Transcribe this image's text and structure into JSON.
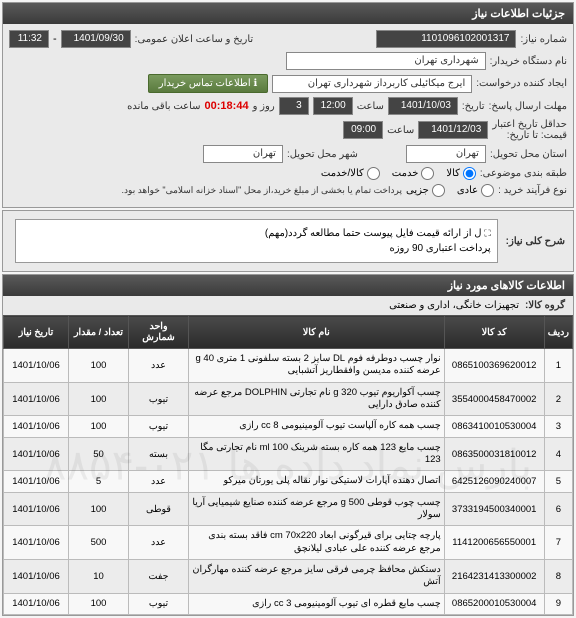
{
  "header": {
    "title": "جزئیات اطلاعات نیاز"
  },
  "info": {
    "need_no_label": "شماره نیاز:",
    "need_no": "1101096102001317",
    "announce_label": "تاریخ و ساعت اعلان عمومی:",
    "announce_date": "1401/09/30",
    "announce_time": "11:32",
    "buyer_label": "نام دستگاه خریدار:",
    "buyer": "شهرداری تهران",
    "creator_label": "ایجاد کننده درخواست:",
    "creator": "ایرج میکائیلی کاربرداز شهرداری تهران",
    "contact_btn": "اطلاعات تماس خریدار",
    "deadline_label": "مهلت ارسال پاسخ:",
    "deadline_date_lbl": "تاریخ:",
    "deadline_date": "1401/10/03",
    "deadline_time_lbl": "ساعت",
    "deadline_time": "12:00",
    "days": "3",
    "days_lbl": "روز و",
    "countdown": "00:18:44",
    "remain_lbl": "ساعت باقی مانده",
    "validity_label": "حداقل تاریخ اعتبار",
    "validity_sub": "قیمت: تا تاریخ:",
    "validity_date": "1401/12/03",
    "validity_time": "09:00",
    "delivery_place_label": "استان محل تحویل:",
    "delivery_province": "تهران",
    "delivery_city_label": "شهر محل تحویل:",
    "delivery_city": "تهران",
    "category_label": "طبقه بندی موضوعی:",
    "cat_goods": "کالا",
    "cat_service": "خدمت",
    "cat_both": "کالا/خدمت",
    "purchase_type_label": "نوع فرآیند خرید :",
    "purchase_type_opt1": "عادی",
    "purchase_type_opt2": "جزیی",
    "purchase_note": "پرداخت تمام یا بخشی از مبلغ خرید،از محل \"اسناد خزانه اسلامی\" خواهد بود."
  },
  "desc": {
    "title": "شرح کلی نیاز:",
    "expand": "⛶",
    "line1": "ل از ارائه قیمت فایل پیوست حتما مطالعه گردد(مهم)",
    "line2": "پرداخت اعتباری  90 روزه"
  },
  "goods": {
    "title": "اطلاعات کالاهای مورد نیاز",
    "group_label": "گروه کالا:",
    "group_value": "تجهیزات خانگی، اداری و صنعتی"
  },
  "table": {
    "headers": {
      "row": "ردیف",
      "code": "کد کالا",
      "name": "نام کالا",
      "unit": "واحد شمارش",
      "qty": "تعداد / مقدار",
      "date": "تاریخ نیاز"
    },
    "rows": [
      {
        "r": "1",
        "code": "0865100369620012",
        "name": "نوار چسب دوطرفه فوم DL سایز 2 بسته سلفونی 1 متری g 40 عرضه کننده مدیسن وافقطاریز آتشبایی",
        "unit": "عدد",
        "qty": "100",
        "date": "1401/10/06"
      },
      {
        "r": "2",
        "code": "3554000458470002",
        "name": "چسب آکواریوم تیوب g 320 نام تجارتی DOLPHIN مرجع عرضه کننده صادق دارایی",
        "unit": "تیوب",
        "qty": "100",
        "date": "1401/10/06"
      },
      {
        "r": "3",
        "code": "0863410010530004",
        "name": "چسب همه کاره آلپاست تیوب آلومینیومی cc 8 رازی",
        "unit": "تیوب",
        "qty": "100",
        "date": "1401/10/06"
      },
      {
        "r": "4",
        "code": "0863500031810012",
        "name": "چسب مایع 123 همه کاره بسته شرینک ml 100 نام تجارتی مگا 123",
        "unit": "بسته",
        "qty": "50",
        "date": "1401/10/06"
      },
      {
        "r": "5",
        "code": "6425126090240007",
        "name": "اتصال دهنده آپارات لاستیکی نوار نقاله پلی یورتان میرکو",
        "unit": "عدد",
        "qty": "5",
        "date": "1401/10/06"
      },
      {
        "r": "6",
        "code": "3733194500340001",
        "name": "چسب چوب قوطی g 500 مرجع عرضه کننده صنایع شیمیایی آریا سولار",
        "unit": "قوطی",
        "qty": "100",
        "date": "1401/10/06"
      },
      {
        "r": "7",
        "code": "1141200656550001",
        "name": "پارچه چتایی برای قیرگونی ابعاد cm 70x220 فاقد بسته بندی مرجع عرضه کننده علی عبادی لیلانچق",
        "unit": "عدد",
        "qty": "500",
        "date": "1401/10/06"
      },
      {
        "r": "8",
        "code": "2164231413300002",
        "name": "دستکش محافظ چرمی فرقی سایز مرجع عرضه کننده مهارگران آتش‌",
        "unit": "جفت",
        "qty": "10",
        "date": "1401/10/06"
      },
      {
        "r": "9",
        "code": "0865200010530004",
        "name": "چسب مایع قطره ای تیوب آلومینیومی cc 3 رازی",
        "unit": "تیوب",
        "qty": "100",
        "date": "1401/10/06"
      }
    ]
  }
}
